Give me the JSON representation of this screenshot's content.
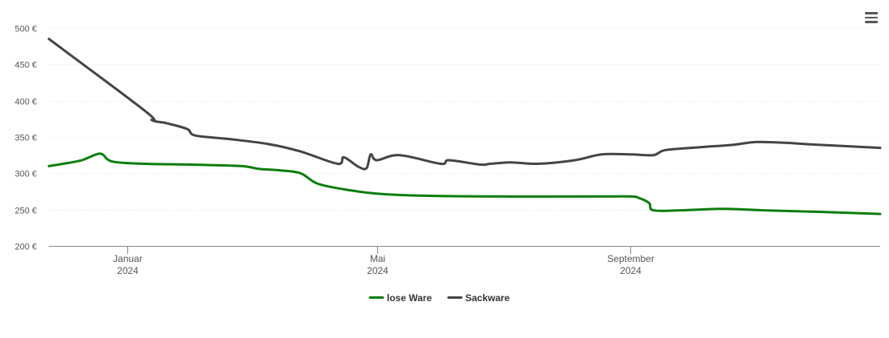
{
  "chart_data": {
    "type": "line",
    "y_ticks": [
      {
        "value": 200,
        "label": "200 €"
      },
      {
        "value": 250,
        "label": "250 €"
      },
      {
        "value": 300,
        "label": "300 €"
      },
      {
        "value": 350,
        "label": "350 €"
      },
      {
        "value": 400,
        "label": "400 €"
      },
      {
        "value": 450,
        "label": "450 €"
      },
      {
        "value": 500,
        "label": "500 €"
      }
    ],
    "ylim": [
      200,
      500
    ],
    "xlim": [
      "2023-11-24",
      "2024-12-31"
    ],
    "x_ticks": [
      {
        "date": "2024-01-01",
        "line1": "Januar",
        "line2": "2024"
      },
      {
        "date": "2024-05-01",
        "line1": "Mai",
        "line2": "2024"
      },
      {
        "date": "2024-09-01",
        "line1": "September",
        "line2": "2024"
      }
    ],
    "grid": true,
    "legend_position": "bottom-center",
    "series": [
      {
        "name": "lose Ware",
        "color": "#0a7d0a",
        "points": [
          [
            "2023-11-24",
            310
          ],
          [
            "2023-12-03",
            314
          ],
          [
            "2023-12-10",
            318
          ],
          [
            "2023-12-17",
            326
          ],
          [
            "2023-12-20",
            326
          ],
          [
            "2023-12-25",
            316
          ],
          [
            "2024-01-10",
            313
          ],
          [
            "2024-02-01",
            312
          ],
          [
            "2024-02-25",
            310
          ],
          [
            "2024-03-05",
            306
          ],
          [
            "2024-03-15",
            304
          ],
          [
            "2024-03-25",
            300
          ],
          [
            "2024-04-02",
            286
          ],
          [
            "2024-04-15",
            278
          ],
          [
            "2024-05-01",
            272
          ],
          [
            "2024-05-25",
            269
          ],
          [
            "2024-07-01",
            268
          ],
          [
            "2024-08-15",
            268
          ],
          [
            "2024-09-01",
            268
          ],
          [
            "2024-09-05",
            266
          ],
          [
            "2024-09-10",
            259
          ],
          [
            "2024-09-12",
            249
          ],
          [
            "2024-09-25",
            249
          ],
          [
            "2024-10-15",
            251
          ],
          [
            "2024-11-05",
            249
          ],
          [
            "2024-11-30",
            247
          ],
          [
            "2024-12-31",
            244
          ]
        ]
      },
      {
        "name": "Sackware",
        "color": "#434348",
        "points": [
          [
            "2023-11-24",
            485
          ],
          [
            "2024-01-10",
            385
          ],
          [
            "2024-01-13",
            373
          ],
          [
            "2024-01-20",
            369
          ],
          [
            "2024-01-30",
            361
          ],
          [
            "2024-02-03",
            352
          ],
          [
            "2024-02-20",
            347
          ],
          [
            "2024-03-10",
            340
          ],
          [
            "2024-03-25",
            330
          ],
          [
            "2024-04-15",
            322
          ],
          [
            "2024-05-01",
            318
          ],
          [
            "2024-06-01",
            313
          ],
          [
            "2024-06-20",
            312
          ],
          [
            "2024-07-05",
            315
          ],
          [
            "2024-07-18",
            313
          ],
          [
            "2024-08-05",
            318
          ],
          [
            "2024-08-18",
            326
          ],
          [
            "2024-09-01",
            326
          ],
          [
            "2024-09-12",
            325
          ],
          [
            "2024-09-18",
            332
          ],
          [
            "2024-10-05",
            336
          ],
          [
            "2024-10-20",
            339
          ],
          [
            "2024-11-01",
            343
          ],
          [
            "2024-11-15",
            342
          ],
          [
            "2024-11-26",
            340
          ],
          [
            "2024-12-31",
            335
          ]
        ],
        "extra_points": [
          [
            "2024-04-12",
            313
          ],
          [
            "2024-04-22",
            309
          ],
          [
            "2024-04-26",
            307
          ],
          [
            "2024-04-28",
            326
          ],
          [
            "2024-05-12",
            325
          ],
          [
            "2024-06-05",
            318
          ],
          [
            "2024-06-25",
            313
          ]
        ]
      }
    ]
  },
  "menu": {
    "icon": "hamburger-menu-icon"
  }
}
